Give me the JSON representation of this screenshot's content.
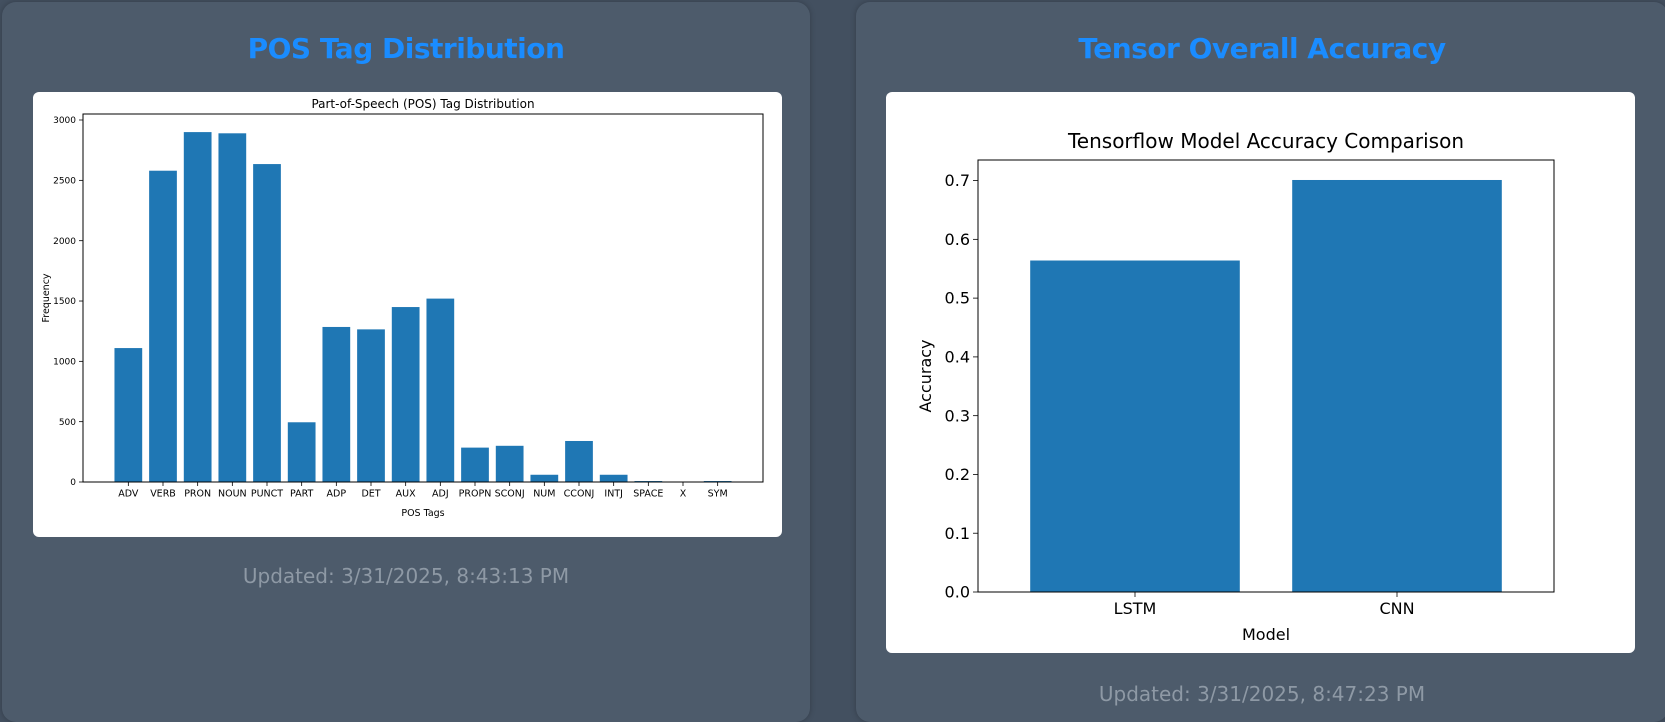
{
  "panels": [
    {
      "heading": "POS Tag Distribution",
      "updated": "Updated: 3/31/2025, 8:43:13 PM"
    },
    {
      "heading": "Tensor Overall Accuracy",
      "updated": "Updated: 3/31/2025, 8:47:23 PM"
    }
  ],
  "chart_data": [
    {
      "type": "bar",
      "title": "Part-of-Speech (POS) Tag Distribution",
      "xlabel": "POS Tags",
      "ylabel": "Frequency",
      "categories": [
        "ADV",
        "VERB",
        "PRON",
        "NOUN",
        "PUNCT",
        "PART",
        "ADP",
        "DET",
        "AUX",
        "ADJ",
        "PROPN",
        "SCONJ",
        "NUM",
        "CCONJ",
        "INTJ",
        "SPACE",
        "X",
        "SYM"
      ],
      "values": [
        1110,
        2580,
        2900,
        2890,
        2635,
        495,
        1285,
        1265,
        1450,
        1520,
        285,
        300,
        60,
        340,
        60,
        8,
        3,
        8
      ],
      "ylim": [
        0,
        3050
      ],
      "yticks": [
        0,
        500,
        1000,
        1500,
        2000,
        2500,
        3000
      ],
      "bar_color": "#1f77b4",
      "grid": false
    },
    {
      "type": "bar",
      "title": "Tensorflow Model Accuracy Comparison",
      "xlabel": "Model",
      "ylabel": "Accuracy",
      "categories": [
        "LSTM",
        "CNN"
      ],
      "values": [
        0.564,
        0.701
      ],
      "ylim": [
        0,
        0.735
      ],
      "yticks": [
        "0.0",
        "0.1",
        "0.2",
        "0.3",
        "0.4",
        "0.5",
        "0.6",
        "0.7"
      ],
      "bar_color": "#1f77b4",
      "grid": false
    }
  ]
}
